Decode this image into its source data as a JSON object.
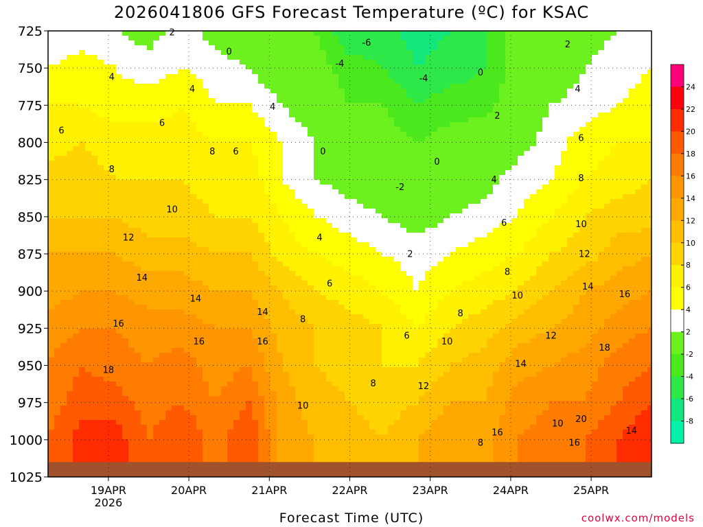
{
  "chart_data": {
    "type": "heatmap",
    "title": "2026041806 GFS Forecast Temperature (ºC) for KSAC",
    "xlabel": "Forecast Time (UTC)",
    "ylabel": "",
    "credit": "coolwx.com/models",
    "x_range_hours": [
      0,
      180
    ],
    "y_range_hpa": [
      725,
      1025
    ],
    "y_ticks": [
      725,
      750,
      775,
      800,
      825,
      850,
      875,
      900,
      925,
      950,
      975,
      1000,
      1025
    ],
    "x_ticks": [
      {
        "hour": 18,
        "label": "19APR",
        "sublabel": "2026"
      },
      {
        "hour": 42,
        "label": "20APR",
        "sublabel": ""
      },
      {
        "hour": 66,
        "label": "21APR",
        "sublabel": ""
      },
      {
        "hour": 90,
        "label": "22APR",
        "sublabel": ""
      },
      {
        "hour": 114,
        "label": "23APR",
        "sublabel": ""
      },
      {
        "hour": 138,
        "label": "24APR",
        "sublabel": ""
      },
      {
        "hour": 162,
        "label": "25APR",
        "sublabel": ""
      }
    ],
    "colorbar": {
      "levels": [
        -10,
        -8,
        -6,
        -4,
        -2,
        2,
        4,
        6,
        8,
        10,
        12,
        14,
        16,
        18,
        20,
        22,
        24,
        26
      ],
      "tick_labels": [
        24,
        22,
        20,
        18,
        16,
        14,
        12,
        10,
        8,
        6,
        4,
        2,
        -2,
        -4,
        -6,
        -8
      ],
      "colors": [
        "#00f2a8",
        "#12e67c",
        "#2ee84a",
        "#4ae81c",
        "#6cf01e",
        "#ffffff",
        "#ffff00",
        "#fff100",
        "#ffd400",
        "#ffbe00",
        "#ffa800",
        "#ff9600",
        "#ff7c00",
        "#ff5a00",
        "#ff2c00",
        "#ff0010",
        "#ff0078"
      ]
    },
    "series": [
      {
        "name": "T 725 hPa",
        "values": [
          2,
          3,
          2,
          1,
          3,
          1,
          0,
          0,
          -2,
          -6,
          -5,
          -7,
          -6,
          -4,
          -1,
          0,
          1,
          2,
          2
        ]
      },
      {
        "name": "T 750 hPa",
        "values": [
          4,
          5,
          4,
          3,
          4,
          3,
          2,
          0,
          -1,
          -3,
          -4,
          -6,
          -5,
          -4,
          -1,
          0,
          2,
          3,
          4
        ]
      },
      {
        "name": "T 775 hPa",
        "values": [
          6,
          6,
          5,
          5,
          6,
          4,
          4,
          2,
          0,
          -2,
          -2,
          -4,
          -3,
          -3,
          0,
          2,
          3,
          4,
          5
        ]
      },
      {
        "name": "T 800 hPa",
        "values": [
          7,
          8,
          7,
          7,
          7,
          6,
          6,
          4,
          2,
          0,
          -1,
          -2,
          -1,
          0,
          1,
          3,
          5,
          6,
          6
        ]
      },
      {
        "name": "T 825 hPa",
        "values": [
          9,
          9,
          8,
          8,
          8,
          7,
          7,
          4,
          2,
          1,
          0,
          -1,
          0,
          1,
          3,
          4,
          6,
          7,
          8
        ]
      },
      {
        "name": "T 850 hPa",
        "values": [
          10,
          10,
          10,
          9,
          9,
          8,
          8,
          6,
          4,
          3,
          2,
          1,
          2,
          3,
          4,
          6,
          8,
          9,
          9
        ]
      },
      {
        "name": "T 875 hPa",
        "values": [
          12,
          12,
          12,
          11,
          11,
          10,
          10,
          7,
          6,
          5,
          4,
          3,
          4,
          5,
          6,
          8,
          9,
          11,
          12
        ]
      },
      {
        "name": "T 900 hPa",
        "values": [
          13,
          14,
          14,
          13,
          13,
          12,
          12,
          10,
          8,
          7,
          6,
          4,
          6,
          7,
          8,
          10,
          12,
          13,
          14
        ]
      },
      {
        "name": "T 925 hPa",
        "values": [
          15,
          16,
          16,
          15,
          15,
          14,
          14,
          11,
          10,
          9,
          8,
          6,
          8,
          9,
          11,
          12,
          13,
          15,
          16
        ]
      },
      {
        "name": "T 950 hPa",
        "values": [
          16,
          18,
          17,
          16,
          17,
          15,
          16,
          12,
          10,
          9,
          8,
          8,
          10,
          11,
          13,
          14,
          15,
          17,
          18
        ]
      },
      {
        "name": "T 975 hPa",
        "values": [
          17,
          19,
          19,
          17,
          18,
          16,
          18,
          13,
          11,
          10,
          9,
          10,
          12,
          12,
          15,
          16,
          16,
          18,
          20
        ]
      },
      {
        "name": "T 1000 hPa",
        "values": [
          18,
          21,
          21,
          18,
          20,
          17,
          20,
          13,
          12,
          11,
          10,
          12,
          14,
          13,
          16,
          17,
          18,
          20,
          22
        ]
      }
    ],
    "contour_labels": [
      {
        "text": "2",
        "hour": 37,
        "hpa": 728
      },
      {
        "text": "0",
        "hour": 54,
        "hpa": 741
      },
      {
        "text": "-6",
        "hour": 95,
        "hpa": 735
      },
      {
        "text": "-4",
        "hour": 87,
        "hpa": 749
      },
      {
        "text": "-4",
        "hour": 112,
        "hpa": 759
      },
      {
        "text": "0",
        "hour": 129,
        "hpa": 755
      },
      {
        "text": "2",
        "hour": 155,
        "hpa": 736
      },
      {
        "text": "4",
        "hour": 19,
        "hpa": 758
      },
      {
        "text": "4",
        "hour": 43,
        "hpa": 766
      },
      {
        "text": "4",
        "hour": 67,
        "hpa": 778
      },
      {
        "text": "4",
        "hour": 158,
        "hpa": 766
      },
      {
        "text": "6",
        "hour": 4,
        "hpa": 794
      },
      {
        "text": "6",
        "hour": 34,
        "hpa": 789
      },
      {
        "text": "6",
        "hour": 56,
        "hpa": 808
      },
      {
        "text": "6",
        "hour": 159,
        "hpa": 799
      },
      {
        "text": "2",
        "hour": 134,
        "hpa": 784
      },
      {
        "text": "8",
        "hour": 19,
        "hpa": 820
      },
      {
        "text": "8",
        "hour": 49,
        "hpa": 808
      },
      {
        "text": "8",
        "hour": 159,
        "hpa": 826
      },
      {
        "text": "0",
        "hour": 82,
        "hpa": 808
      },
      {
        "text": "-2",
        "hour": 105,
        "hpa": 832
      },
      {
        "text": "0",
        "hour": 116,
        "hpa": 815
      },
      {
        "text": "4",
        "hour": 133,
        "hpa": 827
      },
      {
        "text": "10",
        "hour": 37,
        "hpa": 847
      },
      {
        "text": "6",
        "hour": 136,
        "hpa": 856
      },
      {
        "text": "10",
        "hour": 159,
        "hpa": 857
      },
      {
        "text": "4",
        "hour": 81,
        "hpa": 866
      },
      {
        "text": "12",
        "hour": 24,
        "hpa": 866
      },
      {
        "text": "2",
        "hour": 108,
        "hpa": 877
      },
      {
        "text": "12",
        "hour": 160,
        "hpa": 877
      },
      {
        "text": "8",
        "hour": 137,
        "hpa": 889
      },
      {
        "text": "14",
        "hour": 28,
        "hpa": 893
      },
      {
        "text": "6",
        "hour": 84,
        "hpa": 897
      },
      {
        "text": "10",
        "hour": 140,
        "hpa": 905
      },
      {
        "text": "14",
        "hour": 161,
        "hpa": 899
      },
      {
        "text": "16",
        "hour": 172,
        "hpa": 904
      },
      {
        "text": "14",
        "hour": 44,
        "hpa": 907
      },
      {
        "text": "14",
        "hour": 64,
        "hpa": 916
      },
      {
        "text": "8",
        "hour": 123,
        "hpa": 917
      },
      {
        "text": "8",
        "hour": 76,
        "hpa": 921
      },
      {
        "text": "16",
        "hour": 21,
        "hpa": 924
      },
      {
        "text": "6",
        "hour": 107,
        "hpa": 932
      },
      {
        "text": "12",
        "hour": 150,
        "hpa": 932
      },
      {
        "text": "10",
        "hour": 119,
        "hpa": 936
      },
      {
        "text": "16",
        "hour": 45,
        "hpa": 936
      },
      {
        "text": "16",
        "hour": 64,
        "hpa": 936
      },
      {
        "text": "18",
        "hour": 166,
        "hpa": 940
      },
      {
        "text": "14",
        "hour": 141,
        "hpa": 951
      },
      {
        "text": "18",
        "hour": 18,
        "hpa": 955
      },
      {
        "text": "8",
        "hour": 97,
        "hpa": 964
      },
      {
        "text": "12",
        "hour": 112,
        "hpa": 966
      },
      {
        "text": "10",
        "hour": 76,
        "hpa": 979
      },
      {
        "text": "10",
        "hour": 152,
        "hpa": 991
      },
      {
        "text": "20",
        "hour": 159,
        "hpa": 988
      },
      {
        "text": "16",
        "hour": 134,
        "hpa": 997
      },
      {
        "text": "14",
        "hour": 174,
        "hpa": 996
      },
      {
        "text": "16",
        "hour": 157,
        "hpa": 1004
      },
      {
        "text": "8",
        "hour": 129,
        "hpa": 1004
      }
    ],
    "surface_pressure_hpa": 1015
  }
}
